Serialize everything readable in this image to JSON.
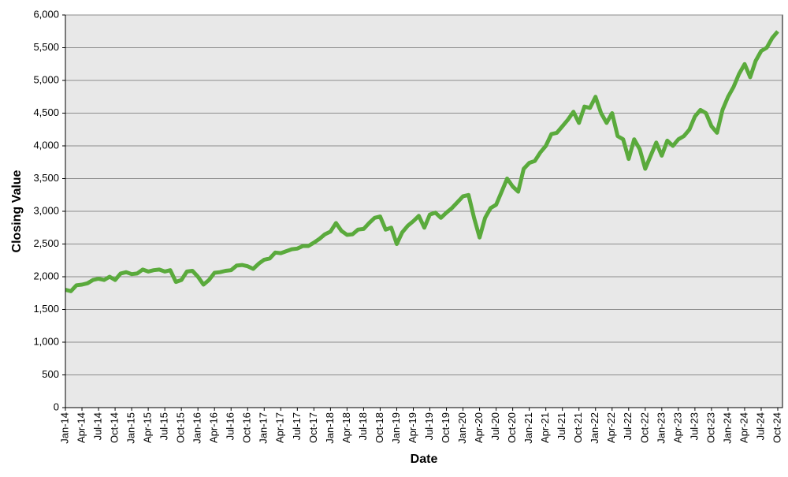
{
  "chart_data": {
    "type": "line",
    "x_label": "Date",
    "y_label": "Closing Value",
    "color": "#5aaa3c",
    "grid": true,
    "ylim": [
      0,
      6000
    ],
    "yticks": [
      0,
      500,
      {
        "value": 1000,
        "label": "1,000"
      },
      {
        "value": 1500,
        "label": "1,500"
      },
      {
        "value": 2000,
        "label": "2,000"
      },
      {
        "value": 2500,
        "label": "2,500"
      },
      {
        "value": 3000,
        "label": "3,000"
      },
      {
        "value": 3500,
        "label": "3,500"
      },
      {
        "value": 4000,
        "label": "4,000"
      },
      {
        "value": 4500,
        "label": "4,500"
      },
      {
        "value": 5000,
        "label": "5,000"
      },
      {
        "value": 5500,
        "label": "5,500"
      },
      {
        "value": 6000,
        "label": "6,000"
      }
    ],
    "categories": [
      "Jan-14",
      null,
      null,
      "Apr-14",
      null,
      null,
      "Jul-14",
      null,
      null,
      "Oct-14",
      null,
      null,
      "Jan-15",
      null,
      null,
      "Apr-15",
      null,
      null,
      "Jul-15",
      null,
      null,
      "Oct-15",
      null,
      null,
      "Jan-16",
      null,
      null,
      "Apr-16",
      null,
      null,
      "Jul-16",
      null,
      null,
      "Oct-16",
      null,
      null,
      "Jan-17",
      null,
      null,
      "Apr-17",
      null,
      null,
      "Jul-17",
      null,
      null,
      "Oct-17",
      null,
      null,
      "Jan-18",
      null,
      null,
      "Apr-18",
      null,
      null,
      "Jul-18",
      null,
      null,
      "Oct-18",
      null,
      null,
      "Jan-19",
      null,
      null,
      "Apr-19",
      null,
      null,
      "Jul-19",
      null,
      null,
      "Oct-19",
      null,
      null,
      "Jan-20",
      null,
      null,
      "Apr-20",
      null,
      null,
      "Jul-20",
      null,
      null,
      "Oct-20",
      null,
      null,
      "Jan-21",
      null,
      null,
      "Apr-21",
      null,
      null,
      "Jul-21",
      null,
      null,
      "Oct-21",
      null,
      null,
      "Jan-22",
      null,
      null,
      "Apr-22",
      null,
      null,
      "Jul-22",
      null,
      null,
      "Oct-22",
      null,
      null,
      "Jan-23",
      null,
      null,
      "Apr-23",
      null,
      null,
      "Jul-23",
      null,
      null,
      "Oct-23",
      null,
      null,
      "Jan-24",
      null,
      null,
      "Apr-24",
      null,
      null,
      "Jul-24",
      null,
      null,
      "Oct-24"
    ],
    "values": [
      1800,
      1780,
      1870,
      1880,
      1900,
      1950,
      1970,
      1950,
      2000,
      1950,
      2050,
      2070,
      2040,
      2050,
      2110,
      2080,
      2100,
      2110,
      2080,
      2100,
      1920,
      1950,
      2080,
      2090,
      2000,
      1880,
      1950,
      2060,
      2070,
      2090,
      2100,
      2170,
      2180,
      2160,
      2120,
      2200,
      2260,
      2280,
      2370,
      2360,
      2390,
      2420,
      2430,
      2470,
      2470,
      2520,
      2580,
      2650,
      2690,
      2820,
      2700,
      2640,
      2650,
      2720,
      2730,
      2820,
      2900,
      2920,
      2720,
      2750,
      2500,
      2680,
      2780,
      2850,
      2930,
      2750,
      2950,
      2980,
      2900,
      2980,
      3050,
      3140,
      3230,
      3250,
      2900,
      2600,
      2900,
      3050,
      3100,
      3300,
      3500,
      3380,
      3300,
      3650,
      3740,
      3770,
      3900,
      4000,
      4180,
      4200,
      4300,
      4400,
      4520,
      4350,
      4600,
      4580,
      4750,
      4500,
      4350,
      4500,
      4150,
      4100,
      3800,
      4100,
      3950,
      3650,
      3850,
      4050,
      3850,
      4080,
      4000,
      4100,
      4150,
      4250,
      4450,
      4550,
      4500,
      4300,
      4200,
      4550,
      4750,
      4900,
      5100,
      5250,
      5050,
      5300,
      5450,
      5500,
      5650,
      5750
    ]
  }
}
